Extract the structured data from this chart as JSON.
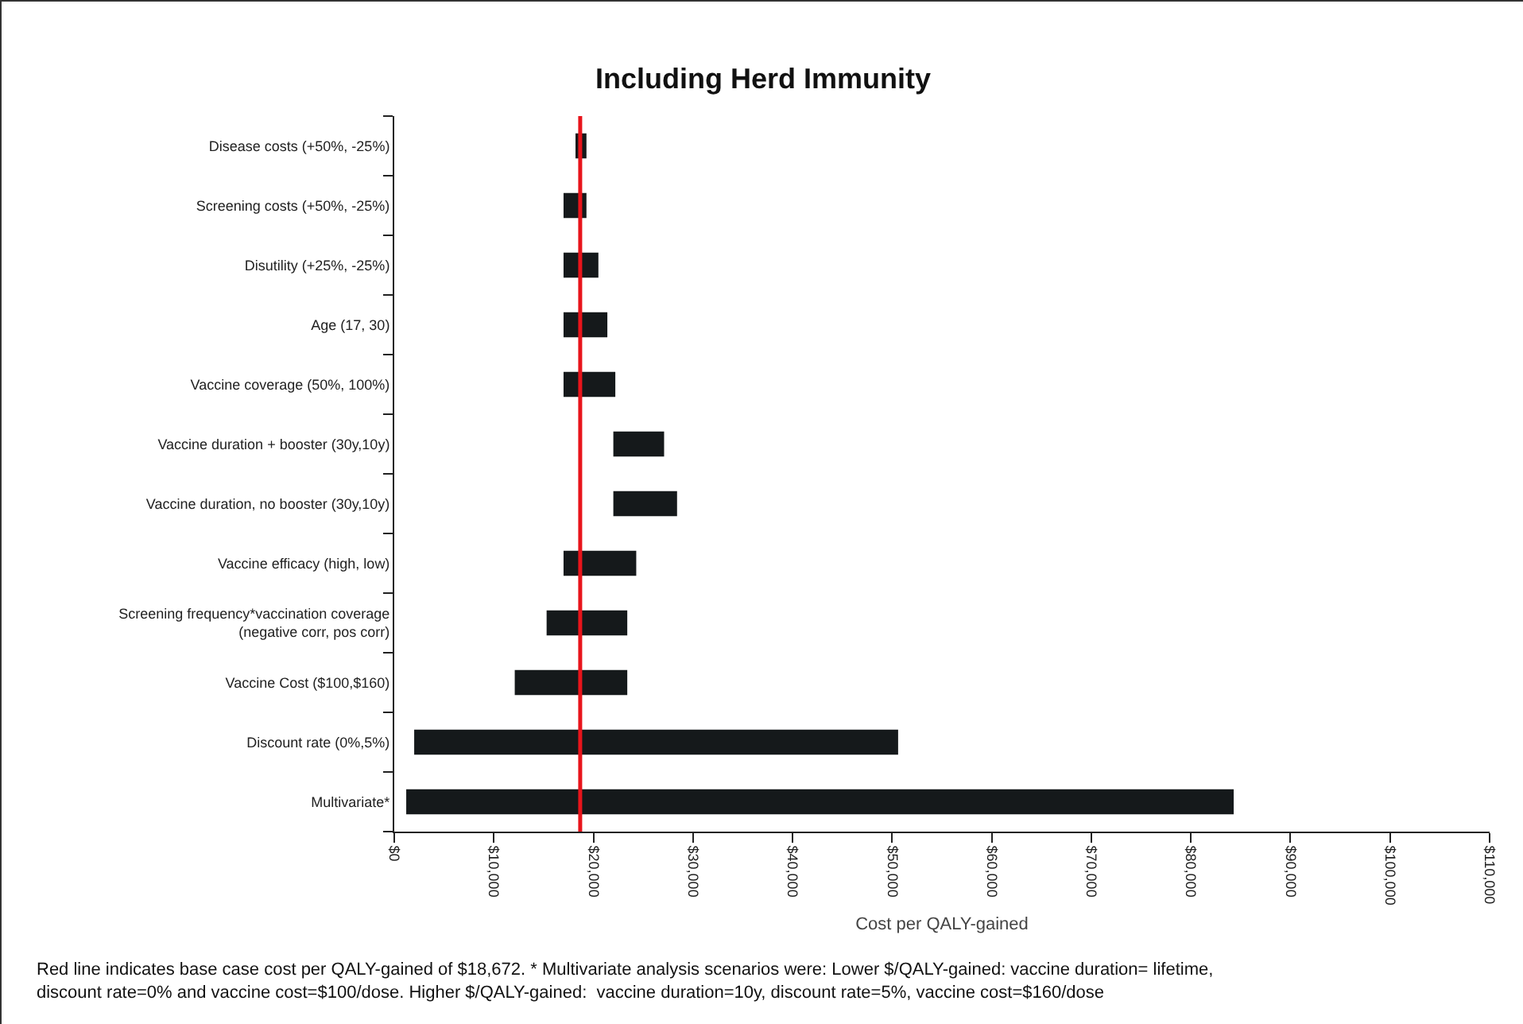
{
  "chart_data": {
    "type": "bar",
    "orientation": "horizontal",
    "title": "Including Herd Immunity",
    "xlabel": "Cost per QALY-gained",
    "categories": [
      "Disease costs (+50%, -25%)",
      "Screening costs (+50%, -25%)",
      "Disutility (+25%, -25%)",
      "Age (17, 30)",
      "Vaccine coverage (50%, 100%)",
      "Vaccine duration + booster (30y,10y)",
      "Vaccine duration, no booster (30y,10y)",
      "Vaccine efficacy (high, low)",
      "Screening frequency*vaccination coverage (negative corr, pos corr)",
      "Vaccine Cost ($100,$160)",
      "Discount rate (0%,5%)",
      "Multivariate*"
    ],
    "base": [
      18200,
      17000,
      17000,
      17000,
      17000,
      22000,
      22000,
      17000,
      15300,
      12100,
      2000,
      1200
    ],
    "values": [
      1100,
      2300,
      3500,
      4400,
      5200,
      5100,
      6400,
      7300,
      8100,
      11300,
      48600,
      83100
    ],
    "color": "#15191b",
    "xlim": [
      0,
      110000
    ],
    "xticks": [
      {
        "value": 0,
        "label": "$0"
      },
      {
        "value": 10000,
        "label": "$10,000"
      },
      {
        "value": 20000,
        "label": "$20,000"
      },
      {
        "value": 30000,
        "label": "$30,000"
      },
      {
        "value": 40000,
        "label": "$40,000"
      },
      {
        "value": 50000,
        "label": "$50,000"
      },
      {
        "value": 60000,
        "label": "$60,000"
      },
      {
        "value": 70000,
        "label": "$70,000"
      },
      {
        "value": 80000,
        "label": "$80,000"
      },
      {
        "value": 90000,
        "label": "$90,000"
      },
      {
        "value": 100000,
        "label": "$100,000"
      },
      {
        "value": 110000,
        "label": "$110,000"
      }
    ],
    "ref_lines": [
      {
        "axis": "x",
        "value": 18672,
        "color": "#e8141b"
      }
    ],
    "annotations": [
      "Red line indicates base case cost per QALY-gained of $18,672. * Multivariate analysis scenarios were: Lower $/QALY-gained: vaccine duration= lifetime, discount rate=0% and vaccine cost=$100/dose. Higher $/QALY-gained:  vaccine duration=10y, discount rate=5%, vaccine cost=$160/dose"
    ]
  }
}
